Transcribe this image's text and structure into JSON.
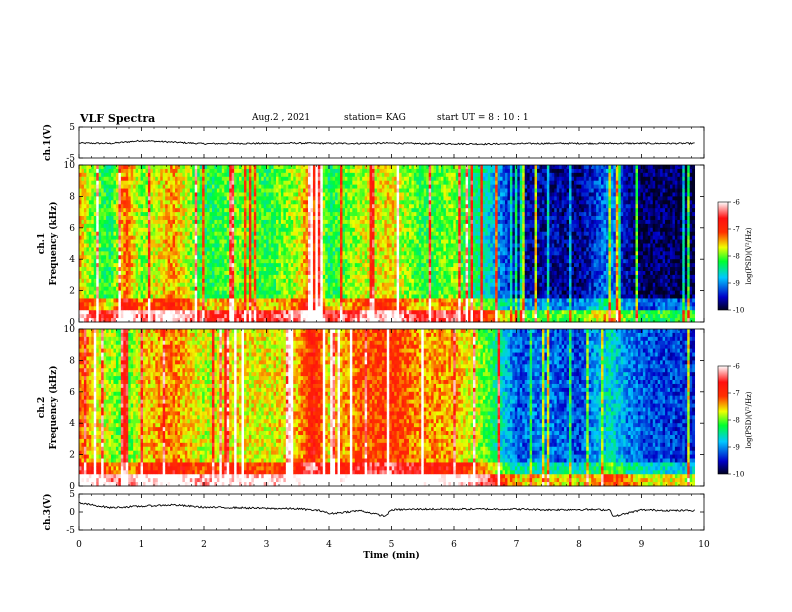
{
  "header": {
    "title": "VLF Spectra",
    "date": "Aug.2 , 2021",
    "station": "station= KAG",
    "start_ut": "start UT = 8 : 10 : 1"
  },
  "chart_data": [
    {
      "type": "line",
      "panel": "ch1-waveform",
      "ylabel": "ch.1(V)",
      "ylim": [
        -5,
        5
      ],
      "yticks": [
        "5",
        "-5"
      ],
      "xlim": [
        0,
        10
      ],
      "grid": false,
      "series": [
        {
          "x": [
            0,
            0.5,
            1.0,
            1.5,
            2.0,
            2.5,
            3.0,
            3.5,
            4.0,
            4.5,
            5.0,
            5.5,
            6.0,
            6.5,
            7.0,
            7.5,
            8.0,
            8.5,
            9.0,
            9.5,
            9.85
          ],
          "values": [
            -0.2,
            -0.3,
            0.6,
            0.1,
            -0.4,
            -0.3,
            -0.3,
            -0.2,
            -0.3,
            -0.3,
            -0.2,
            -0.4,
            -0.4,
            -0.5,
            -0.4,
            -0.3,
            -0.3,
            -0.3,
            -0.3,
            -0.3,
            -0.3
          ]
        }
      ]
    },
    {
      "type": "heatmap",
      "panel": "ch1-spectrogram",
      "ylabel": "ch.1 Frequency (kHz)",
      "ylim": [
        0,
        10
      ],
      "yticks": [
        "0",
        "2",
        "4",
        "6",
        "8",
        "10"
      ],
      "xlim": [
        0,
        10
      ],
      "colorbar": {
        "label": "log(PSD)(V²/Hz)",
        "range": [
          -10,
          -6
        ],
        "ticks": [
          "-6",
          "-7",
          "-8",
          "-9",
          "-10"
        ]
      },
      "segments": [
        {
          "x": [
            0,
            0.25,
            0.5,
            0.75,
            1.0,
            1.5,
            2.0,
            2.5,
            3.0,
            3.5,
            3.75,
            4.0,
            4.5,
            5.0,
            5.5,
            6.0,
            6.5,
            7.0,
            7.5,
            8.0,
            8.5,
            8.75,
            9.0,
            9.5,
            9.85
          ],
          "level": [
            -7.5,
            -8.0,
            -8.3,
            -7.2,
            -8.0,
            -7.4,
            -8.3,
            -8.0,
            -8.2,
            -7.8,
            -7.0,
            -8.3,
            -7.8,
            -7.6,
            -8.2,
            -7.9,
            -8.6,
            -9.6,
            -9.6,
            -9.7,
            -9.0,
            -9.6,
            -9.8,
            -9.8,
            -9.9
          ]
        }
      ]
    },
    {
      "type": "heatmap",
      "panel": "ch2-spectrogram",
      "ylabel": "ch.2 Frequency (kHz)",
      "ylim": [
        0,
        10
      ],
      "yticks": [
        "0",
        "2",
        "4",
        "6",
        "8",
        "10"
      ],
      "xlim": [
        0,
        10
      ],
      "colorbar": {
        "label": "log(PSD)(V²/Hz)",
        "range": [
          -10,
          -6
        ],
        "ticks": [
          "-6",
          "-7",
          "-8",
          "-9",
          "-10"
        ]
      },
      "segments": [
        {
          "x": [
            0,
            0.25,
            0.5,
            0.75,
            1.0,
            1.5,
            2.0,
            2.5,
            3.0,
            3.5,
            3.75,
            4.0,
            4.5,
            5.0,
            5.5,
            6.0,
            6.5,
            7.0,
            7.5,
            8.0,
            8.5,
            8.75,
            9.0,
            9.5,
            9.85
          ],
          "level": [
            -7.2,
            -7.6,
            -7.8,
            -8.2,
            -7.6,
            -7.3,
            -7.8,
            -7.6,
            -7.7,
            -7.5,
            -6.8,
            -7.6,
            -7.2,
            -7.0,
            -7.4,
            -7.4,
            -8.0,
            -9.2,
            -9.1,
            -9.3,
            -8.6,
            -9.0,
            -9.2,
            -9.3,
            -9.4
          ]
        }
      ]
    },
    {
      "type": "line",
      "panel": "ch3-waveform",
      "ylabel": "ch.3(V)",
      "ylim": [
        -5,
        5
      ],
      "yticks": [
        "5",
        "0",
        "-5"
      ],
      "xlim": [
        0,
        10
      ],
      "xlabel": "Time (min)",
      "xticks": [
        "0",
        "1",
        "2",
        "3",
        "4",
        "5",
        "6",
        "7",
        "8",
        "9",
        "10"
      ],
      "grid": false,
      "series": [
        {
          "x": [
            0,
            0.5,
            1.0,
            1.5,
            2.0,
            2.5,
            3.0,
            3.5,
            3.9,
            4.0,
            4.5,
            4.9,
            5.0,
            5.5,
            6.0,
            6.5,
            7.0,
            7.5,
            8.0,
            8.5,
            8.55,
            9.0,
            9.5,
            9.85
          ],
          "values": [
            2.5,
            1.2,
            1.6,
            2.0,
            1.3,
            1.2,
            1.0,
            0.9,
            0.3,
            -0.5,
            0.4,
            -1.2,
            0.6,
            0.8,
            0.8,
            0.8,
            0.8,
            0.6,
            0.7,
            0.6,
            -1.3,
            0.6,
            0.4,
            0.4
          ]
        }
      ]
    }
  ],
  "colors": {
    "colormap": [
      "#000020",
      "#0000c8",
      "#00c8ff",
      "#00ff30",
      "#f0ff00",
      "#ff3000",
      "#ff1010",
      "#ffffff"
    ],
    "background": "#ffffff",
    "axis": "#000000"
  }
}
